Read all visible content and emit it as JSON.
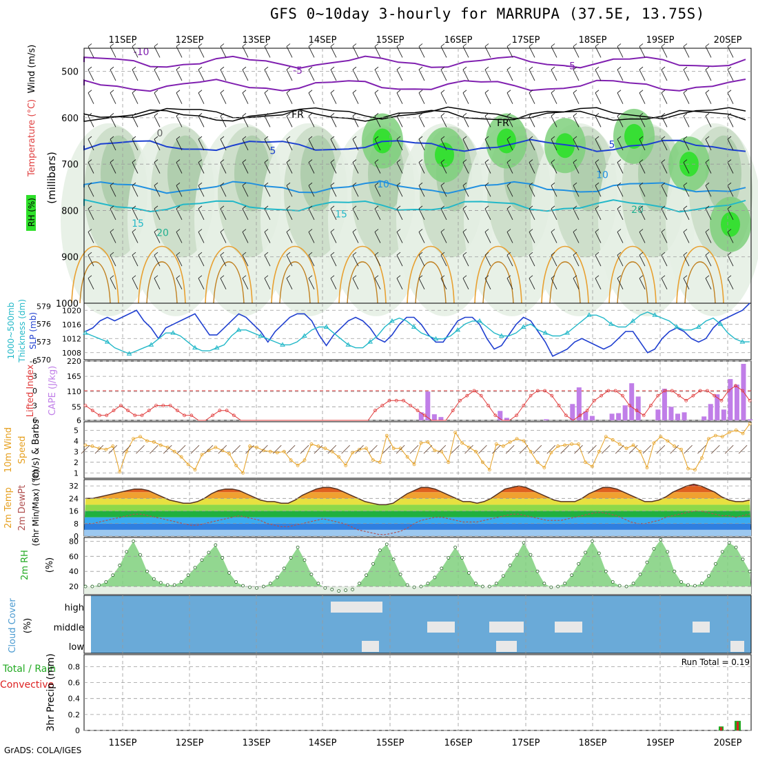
{
  "title": "GFS 0~10day 3-hourly for MARRUPA (37.5E, 13.75S)",
  "footer": "GrADS: COLA/IGES",
  "date_labels": [
    "11SEP",
    "12SEP",
    "13SEP",
    "14SEP",
    "15SEP",
    "16SEP",
    "17SEP",
    "18SEP",
    "19SEP",
    "20SEP"
  ],
  "colors": {
    "slp": "#1f3fd0",
    "thickness": "#22b8c8",
    "lifted_index": "#e03a3a",
    "cape": "#c07ee8",
    "wind_speed": "#e6a020",
    "dewpoint": "#b05050",
    "rh2m": "#22aa22",
    "cloud_bg": "#6aaad8",
    "precip_total": "#22aa22",
    "precip_conv": "#dd2222"
  },
  "panels": {
    "upper": {
      "ylabel_rh": "RH (%)",
      "ylabel_temp": "Temperature (°C)",
      "ylabel_wind": "Wind (m/s)",
      "ylabel_p": "(millibars)",
      "ticks": [
        "500",
        "600",
        "700",
        "800",
        "900",
        "1000"
      ],
      "temp_labels": [
        "-10",
        "-5",
        "-5",
        "0",
        "5",
        "5",
        "10",
        "10",
        "15",
        "15",
        "20",
        "20",
        "FR",
        "FR"
      ]
    },
    "slp": {
      "label_a": "1000~500mb",
      "label_b": "Thickness (dm)",
      "label_c": "SLP (mb)",
      "left_ticks": [
        "579",
        "576",
        "573",
        "570"
      ],
      "right_ticks": [
        "1020",
        "1016",
        "1012",
        "1008"
      ]
    },
    "cape": {
      "label_a": "Lifted Index",
      "label_b": "CAPE (J/kg)",
      "left_ticks": [
        "-6",
        "-3",
        "0",
        "3",
        "6"
      ],
      "right_ticks": [
        "220",
        "165",
        "110",
        "55",
        "6"
      ]
    },
    "wind": {
      "label_a": "10m Wind",
      "label_b": "Speed",
      "label_c": "(m/s) & Barbs",
      "ticks": [
        "5",
        "4",
        "3",
        "2",
        "1"
      ]
    },
    "temp": {
      "label_a": "2m Temp",
      "label_b": "2m DewPt",
      "label_c": "(6hr Min/Max) (°C)",
      "ticks": [
        "32",
        "24",
        "16",
        "8",
        "0"
      ]
    },
    "rh": {
      "label_a": "2m RH",
      "label_b": "(%)",
      "ticks": [
        "80",
        "60",
        "40",
        "20"
      ]
    },
    "cloud": {
      "label_a": "Cloud Cover",
      "label_b": "(%)",
      "levels": [
        "high",
        "middle",
        "low"
      ]
    },
    "precip": {
      "label_a": "Total / Rain",
      "label_b": "Convective",
      "label_c": "3hr Precip (mm)",
      "ticks": [
        "0.8",
        "0.6",
        "0.4",
        "0.2",
        "0"
      ],
      "run_total": "Run Total = 0.19"
    }
  },
  "chart_data": [
    {
      "type": "line",
      "title": "SLP (mb)",
      "ylim": [
        1006,
        1022
      ],
      "series": [
        {
          "name": "SLP (mb)",
          "values": [
            1014,
            1015,
            1017,
            1018,
            1017,
            1018,
            1019,
            1020,
            1017,
            1015,
            1012,
            1015,
            1016,
            1017,
            1018,
            1019,
            1016,
            1013,
            1013,
            1015,
            1017,
            1019,
            1018,
            1016,
            1014,
            1011,
            1014,
            1016,
            1018,
            1019,
            1019,
            1017,
            1013,
            1010,
            1013,
            1015,
            1017,
            1018,
            1017,
            1015,
            1012,
            1011,
            1013,
            1016,
            1018,
            1018,
            1016,
            1013,
            1011,
            1011,
            1014,
            1017,
            1018,
            1018,
            1016,
            1012,
            1009,
            1010,
            1013,
            1016,
            1018,
            1017,
            1014,
            1011,
            1007,
            1008,
            1009,
            1011,
            1012,
            1011,
            1010,
            1009,
            1010,
            1012,
            1014,
            1014,
            1011,
            1008,
            1009,
            1012,
            1014,
            1015,
            1014,
            1012,
            1011,
            1012,
            1015,
            1017,
            1018,
            1019,
            1020,
            1022
          ]
        }
      ]
    },
    {
      "type": "line",
      "title": "1000~500mb Thickness (dm)",
      "ylim": [
        570,
        579.5
      ],
      "series": [
        {
          "name": "Thickness (dm)",
          "values": [
            574.5,
            574,
            573.5,
            573,
            572,
            571.5,
            571,
            571.5,
            572,
            572.5,
            573.5,
            574.5,
            574.5,
            574,
            573,
            572,
            571.5,
            571.5,
            572,
            572.5,
            574,
            575,
            575,
            574.5,
            574,
            573.5,
            573,
            572.5,
            572.5,
            573,
            574,
            575,
            575.5,
            575.5,
            574.5,
            573.5,
            572.5,
            572,
            572,
            573,
            574,
            575.5,
            576.5,
            577,
            576.5,
            575.5,
            574.5,
            574,
            573.5,
            573.5,
            574,
            575,
            576,
            576.5,
            576.5,
            575.5,
            574.5,
            574,
            574,
            574.5,
            575.5,
            576,
            575,
            574.5,
            574,
            574,
            574.5,
            575.5,
            576.5,
            577.5,
            577.5,
            577,
            576,
            575.5,
            575.5,
            576.5,
            577.5,
            578,
            577.5,
            577,
            576.5,
            575.5,
            575,
            575,
            575.5,
            576.5,
            577,
            576,
            574.5,
            573.5,
            573,
            573
          ]
        }
      ]
    },
    {
      "type": "line",
      "title": "Lifted Index",
      "ylim": [
        6,
        -6
      ],
      "series": [
        {
          "name": "Lifted Index",
          "values": [
            3,
            4,
            5,
            5,
            4,
            3,
            4,
            5,
            5,
            4,
            3,
            3,
            3,
            4,
            5,
            5,
            6,
            6,
            5,
            4,
            4,
            5,
            6,
            6,
            6,
            6,
            6,
            6,
            6,
            6,
            6,
            6,
            6,
            6,
            6,
            6,
            6,
            6,
            6,
            6,
            6,
            4,
            3,
            2,
            2,
            2,
            3,
            4,
            5,
            6,
            6,
            6,
            4,
            2,
            1,
            0,
            1,
            3,
            5,
            6,
            6,
            5,
            3,
            1,
            0,
            0,
            1,
            3,
            5,
            6,
            5,
            4,
            2,
            1,
            0,
            0,
            1,
            3,
            4,
            5,
            3,
            1,
            0,
            0,
            1,
            2,
            1,
            0,
            0,
            1,
            2,
            0,
            -1,
            0,
            2
          ]
        }
      ]
    },
    {
      "type": "bar",
      "title": "CAPE (J/kg)",
      "ylim": [
        6,
        220
      ],
      "values": [
        0,
        0,
        0,
        0,
        0,
        0,
        0,
        0,
        0,
        0,
        0,
        0,
        0,
        0,
        0,
        0,
        0,
        0,
        0,
        0,
        0,
        0,
        0,
        0,
        0,
        0,
        0,
        0,
        0,
        0,
        0,
        0,
        0,
        0,
        0,
        0,
        0,
        0,
        0,
        0,
        0,
        0,
        0,
        0,
        0,
        0,
        0,
        0,
        0,
        0,
        0,
        35,
        110,
        28,
        18,
        0,
        0,
        0,
        0,
        0,
        0,
        0,
        0,
        40,
        15,
        0,
        0,
        0,
        0,
        0,
        10,
        0,
        0,
        0,
        65,
        125,
        38,
        22,
        0,
        0,
        30,
        32,
        60,
        140,
        92,
        0,
        0,
        45,
        120,
        55,
        30,
        35,
        0,
        0,
        20,
        65,
        100,
        45,
        155,
        135,
        210,
        10
      ]
    },
    {
      "type": "line",
      "title": "10m Wind Speed (m/s)",
      "ylim": [
        0.5,
        5.8
      ],
      "series": [
        {
          "name": "Speed",
          "values": [
            3.6,
            3.5,
            3.3,
            3.2,
            3.5,
            1.1,
            3.0,
            4.2,
            4.4,
            4.0,
            3.9,
            3.6,
            3.4,
            3.0,
            2.5,
            1.8,
            1.3,
            2.7,
            3.1,
            3.4,
            3.1,
            2.8,
            1.7,
            1.0,
            3.5,
            3.4,
            3.1,
            3.0,
            2.9,
            3.0,
            2.2,
            1.7,
            2.2,
            3.7,
            3.5,
            3.3,
            3.0,
            2.5,
            1.7,
            2.9,
            3.2,
            3.3,
            2.2,
            2.0,
            4.5,
            3.3,
            3.3,
            2.5,
            1.8,
            3.8,
            3.9,
            3.1,
            3.0,
            2.0,
            4.8,
            3.8,
            3.4,
            3.0,
            2.0,
            1.3,
            3.7,
            3.5,
            3.9,
            4.2,
            4.0,
            3.0,
            2.0,
            1.5,
            2.9,
            3.5,
            3.6,
            3.7,
            3.7,
            2.0,
            1.6,
            3.0,
            4.4,
            4.1,
            3.7,
            3.3,
            3.6,
            3.0,
            1.5,
            3.8,
            4.4,
            4.0,
            3.5,
            3.2,
            1.4,
            1.3,
            2.4,
            4.2,
            4.5,
            4.4,
            4.8,
            5.0,
            4.7,
            5.6
          ]
        }
      ]
    },
    {
      "type": "area",
      "title": "2m Temp / 2m DewPt (°C)",
      "ylim": [
        0,
        36
      ],
      "series": [
        {
          "name": "2m Temp",
          "values": [
            24,
            24,
            25,
            26,
            27,
            28,
            29,
            30,
            30,
            29,
            27,
            25,
            23,
            22,
            21,
            21,
            22,
            24,
            27,
            29,
            30,
            30,
            29,
            27,
            25,
            23,
            22,
            22,
            21,
            21,
            23,
            26,
            28,
            30,
            31,
            31,
            30,
            28,
            26,
            24,
            22,
            21,
            20,
            20,
            21,
            24,
            27,
            29,
            31,
            31,
            30,
            28,
            26,
            24,
            22,
            22,
            21,
            22,
            24,
            27,
            30,
            31,
            32,
            31,
            29,
            27,
            25,
            23,
            22,
            22,
            22,
            24,
            27,
            29,
            31,
            31,
            30,
            28,
            26,
            24,
            22,
            22,
            23,
            25,
            28,
            30,
            32,
            33,
            32,
            30,
            28,
            25,
            23,
            22,
            22,
            23
          ]
        },
        {
          "name": "2m DewPt",
          "values": [
            8,
            8,
            9,
            10,
            11,
            12,
            13,
            14,
            14,
            13,
            12,
            11,
            10,
            9,
            8,
            7,
            7,
            8,
            9,
            10,
            11,
            12,
            13,
            12,
            11,
            10,
            8,
            7,
            6,
            6,
            7,
            8,
            9,
            10,
            11,
            10,
            9,
            8,
            6,
            4,
            3,
            2,
            1,
            1,
            2,
            3,
            5,
            8,
            10,
            11,
            12,
            12,
            11,
            10,
            9,
            9,
            9,
            10,
            11,
            12,
            13,
            14,
            14,
            13,
            12,
            11,
            10,
            10,
            10,
            11,
            12,
            13,
            14,
            15,
            15,
            14,
            13,
            11,
            9,
            8,
            8,
            9,
            10,
            12,
            13,
            14,
            15,
            16,
            16,
            15,
            14,
            13,
            13,
            12,
            13,
            14
          ]
        }
      ]
    },
    {
      "type": "area",
      "title": "2m RH (%)",
      "ylim": [
        10,
        85
      ],
      "series": [
        {
          "name": "2m RH",
          "values": [
            20,
            20,
            22,
            26,
            35,
            48,
            66,
            80,
            62,
            40,
            30,
            25,
            22,
            22,
            26,
            35,
            45,
            55,
            65,
            75,
            58,
            38,
            26,
            21,
            19,
            18,
            20,
            24,
            32,
            44,
            58,
            72,
            55,
            36,
            24,
            18,
            16,
            14,
            15,
            16,
            24,
            35,
            50,
            68,
            76,
            56,
            36,
            22,
            19,
            20,
            24,
            32,
            44,
            58,
            72,
            58,
            38,
            24,
            20,
            20,
            24,
            34,
            48,
            62,
            78,
            62,
            40,
            24,
            19,
            20,
            24,
            35,
            50,
            65,
            80,
            64,
            40,
            26,
            21,
            20,
            24,
            36,
            52,
            70,
            82,
            66,
            40,
            26,
            22,
            21,
            24,
            34,
            50,
            66,
            78,
            72,
            56,
            40
          ]
        }
      ]
    }
  ]
}
